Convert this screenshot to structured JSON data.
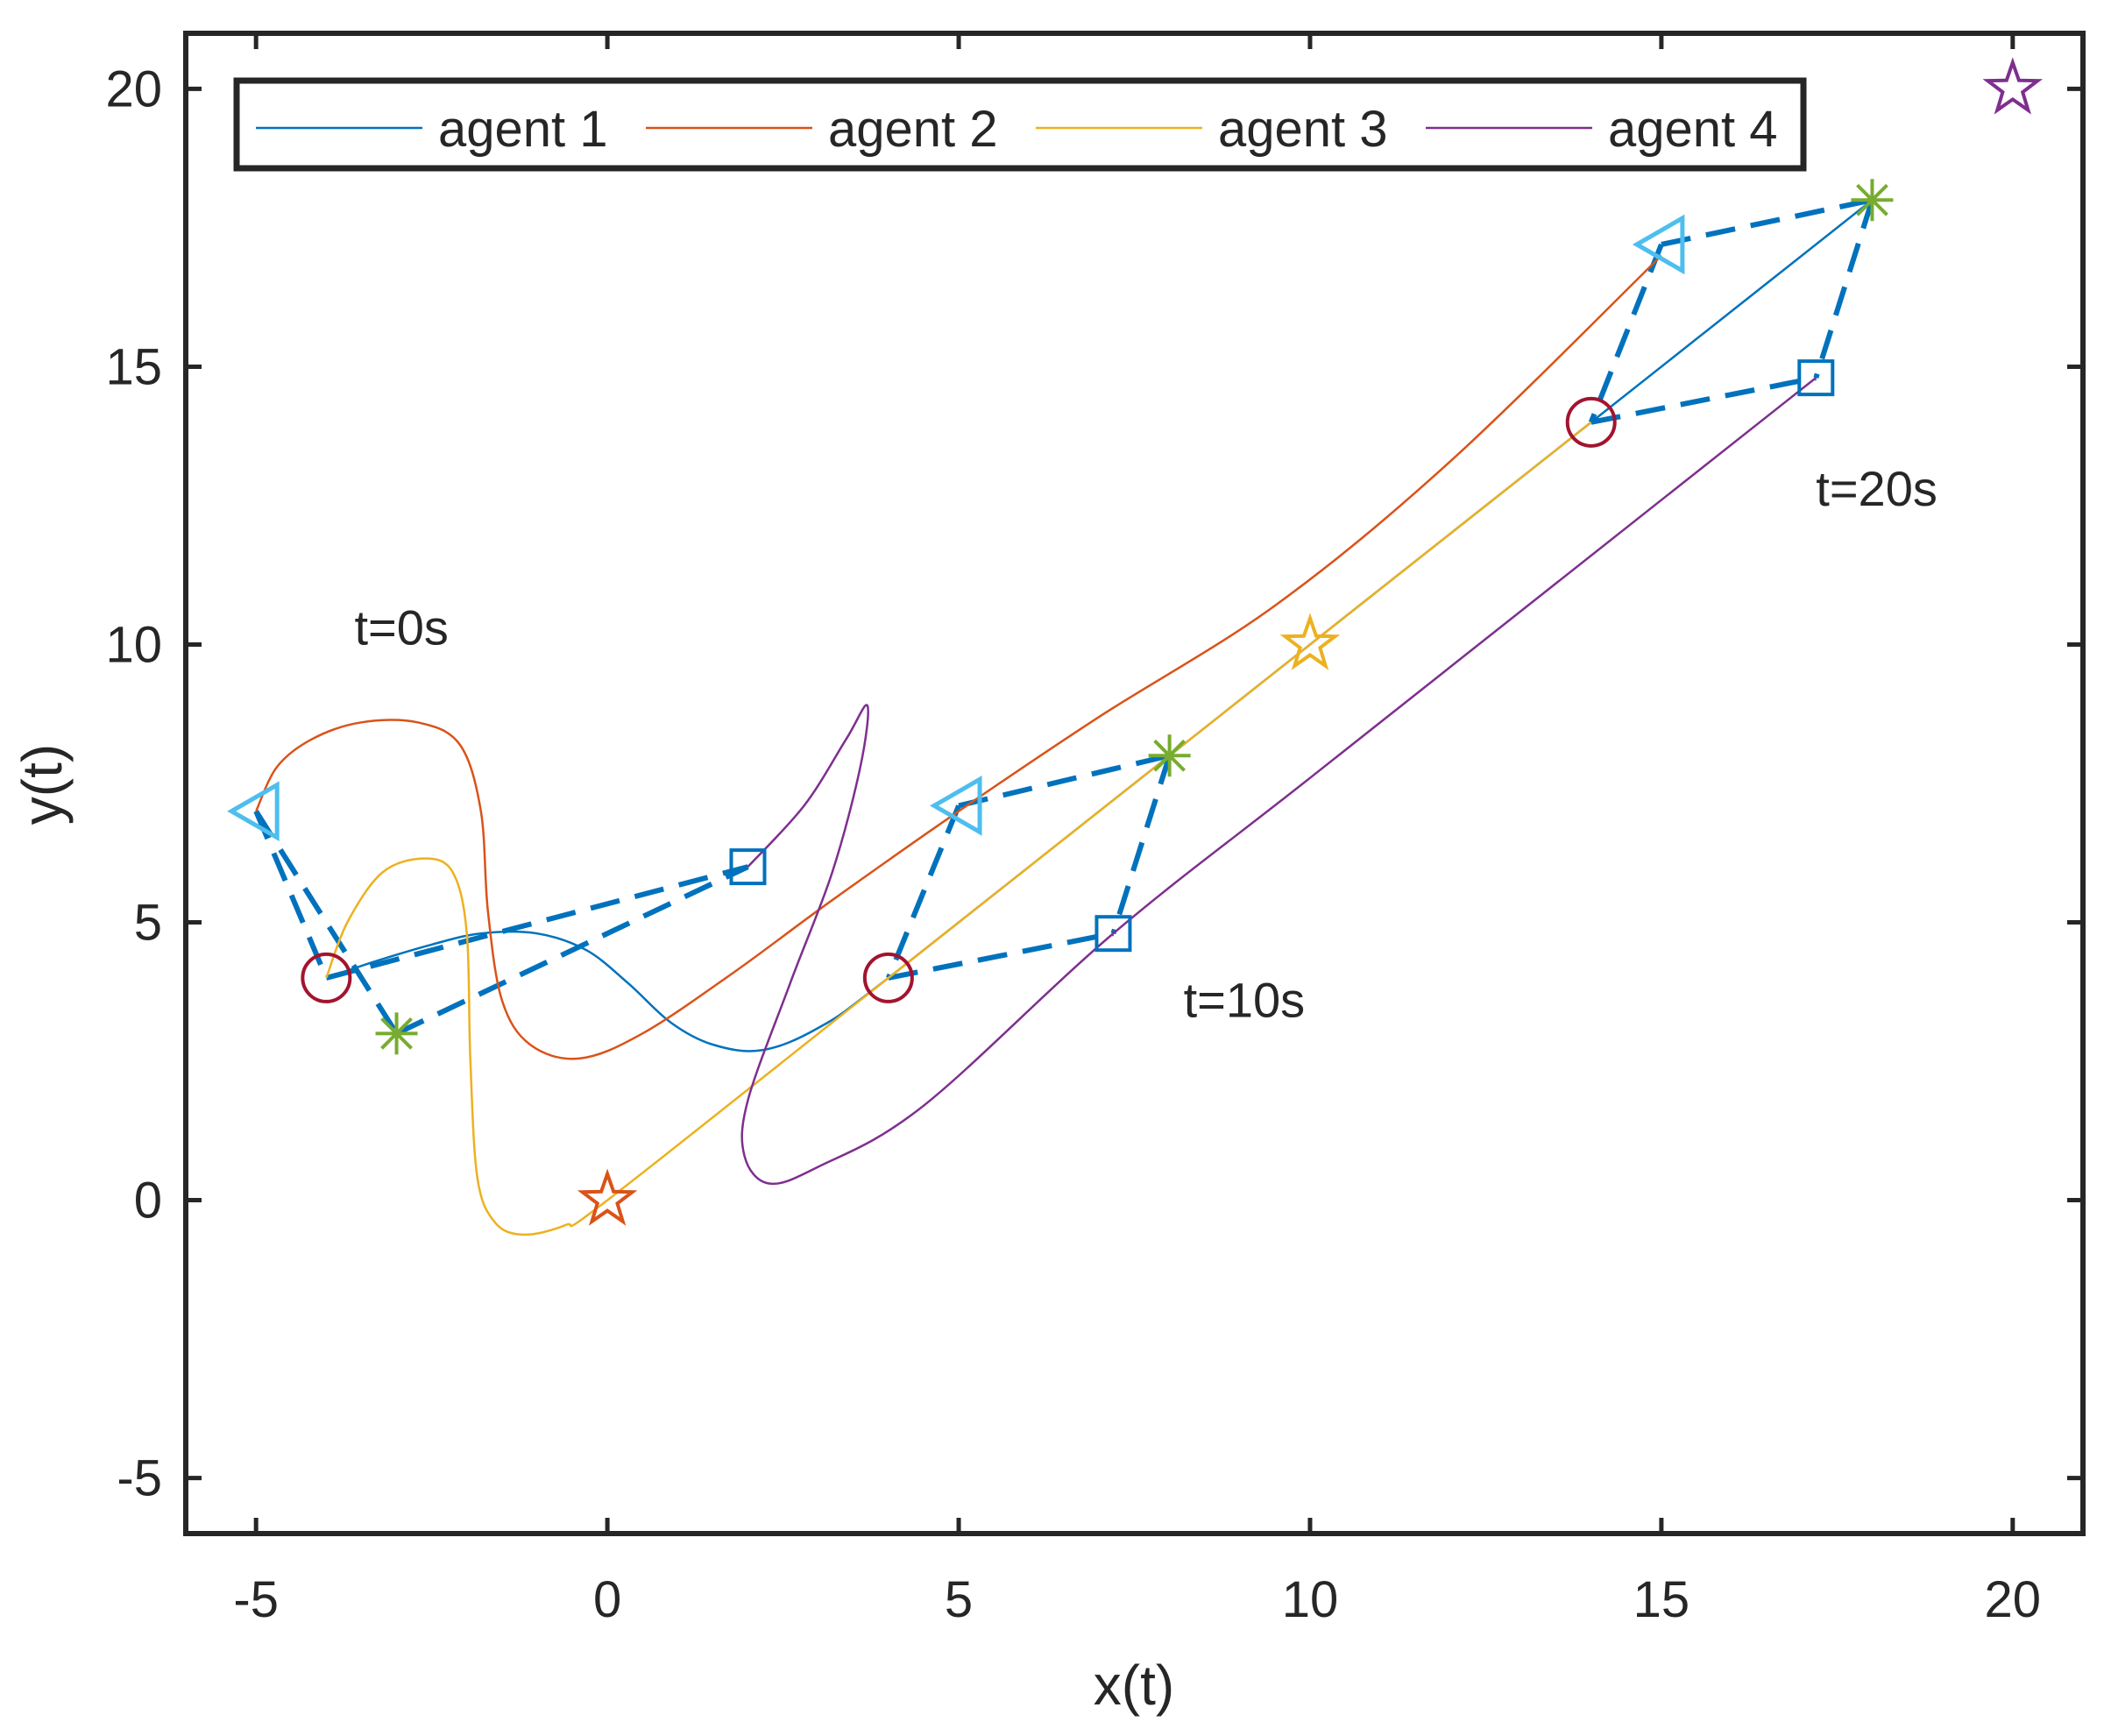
{
  "chart_data": {
    "type": "line",
    "title": "",
    "xlabel": "x(t)",
    "ylabel": "y(t)",
    "xlim": [
      -6,
      21
    ],
    "ylim": [
      -6,
      21
    ],
    "xticks": [
      -5,
      0,
      5,
      10,
      15,
      20
    ],
    "yticks": [
      -5,
      0,
      5,
      10,
      15,
      20
    ],
    "xtick_labels": [
      "-5",
      "0",
      "5",
      "10",
      "15",
      "20"
    ],
    "ytick_labels": [
      "-5",
      "0",
      "5",
      "10",
      "15",
      "20"
    ],
    "grid": false,
    "legend_position": "top-left",
    "series": [
      {
        "name": "agent 1",
        "color": "#0072BD",
        "points": [
          [
            -4,
            4
          ],
          [
            -3.3,
            4.3
          ],
          [
            -2.5,
            4.6
          ],
          [
            -1.8,
            4.8
          ],
          [
            -1.0,
            4.8
          ],
          [
            -0.3,
            4.5
          ],
          [
            0.3,
            3.9
          ],
          [
            0.9,
            3.2
          ],
          [
            1.5,
            2.8
          ],
          [
            2.2,
            2.7
          ],
          [
            3.0,
            3.1
          ],
          [
            4,
            4
          ],
          [
            8,
            8
          ],
          [
            14,
            14
          ],
          [
            16,
            16
          ],
          [
            18,
            18
          ]
        ]
      },
      {
        "name": "agent 2",
        "color": "#D95319",
        "points": [
          [
            -5,
            7
          ],
          [
            -4.7,
            7.8
          ],
          [
            -4.2,
            8.3
          ],
          [
            -3.5,
            8.6
          ],
          [
            -2.7,
            8.6
          ],
          [
            -2.1,
            8.2
          ],
          [
            -1.8,
            7.0
          ],
          [
            -1.7,
            5.2
          ],
          [
            -1.5,
            3.6
          ],
          [
            -1.1,
            2.8
          ],
          [
            -0.4,
            2.55
          ],
          [
            0.5,
            3.0
          ],
          [
            1.8,
            4.1
          ],
          [
            3.2,
            5.4
          ],
          [
            5,
            7
          ],
          [
            7,
            8.7
          ],
          [
            9.5,
            10.7
          ],
          [
            12,
            13.3
          ],
          [
            15,
            17
          ]
        ]
      },
      {
        "name": "agent 3",
        "color": "#EDB120",
        "points": [
          [
            -4,
            4
          ],
          [
            -3.7,
            5.0
          ],
          [
            -3.2,
            5.9
          ],
          [
            -2.6,
            6.15
          ],
          [
            -2.2,
            5.9
          ],
          [
            -2.0,
            4.8
          ],
          [
            -1.95,
            2.5
          ],
          [
            -1.85,
            0.4
          ],
          [
            -1.6,
            -0.4
          ],
          [
            -1.2,
            -0.62
          ],
          [
            -0.6,
            -0.45
          ],
          [
            0,
            0
          ],
          [
            4,
            4
          ],
          [
            8,
            8
          ],
          [
            10,
            10
          ],
          [
            14,
            14
          ]
        ]
      },
      {
        "name": "agent 4",
        "color": "#7E2F8E",
        "points": [
          [
            2,
            6
          ],
          [
            2.8,
            7.1
          ],
          [
            3.4,
            8.3
          ],
          [
            3.7,
            8.9
          ],
          [
            3.6,
            7.8
          ],
          [
            3.2,
            5.9
          ],
          [
            2.6,
            3.9
          ],
          [
            2.0,
            1.8
          ],
          [
            1.95,
            0.8
          ],
          [
            2.3,
            0.3
          ],
          [
            3.0,
            0.6
          ],
          [
            4.5,
            1.7
          ],
          [
            7.2,
            4.8
          ],
          [
            10,
            7.6
          ],
          [
            14,
            11.6
          ],
          [
            17.2,
            14.8
          ]
        ]
      }
    ],
    "markers": [
      {
        "shape": "circle",
        "x": -4,
        "y": 4,
        "color": "#A2142F"
      },
      {
        "shape": "circle",
        "x": 4,
        "y": 4,
        "color": "#A2142F"
      },
      {
        "shape": "circle",
        "x": 14,
        "y": 14,
        "color": "#A2142F"
      },
      {
        "shape": "asterisk",
        "x": -3,
        "y": 3,
        "color": "#77AC30"
      },
      {
        "shape": "asterisk",
        "x": 8,
        "y": 8,
        "color": "#77AC30"
      },
      {
        "shape": "asterisk",
        "x": 18,
        "y": 18,
        "color": "#77AC30"
      },
      {
        "shape": "square",
        "x": 2,
        "y": 6,
        "color": "#0072BD"
      },
      {
        "shape": "square",
        "x": 7.2,
        "y": 4.8,
        "color": "#0072BD"
      },
      {
        "shape": "square",
        "x": 17.2,
        "y": 14.8,
        "color": "#0072BD"
      },
      {
        "shape": "triangle-left",
        "x": -5,
        "y": 7,
        "color": "#4DBEEE"
      },
      {
        "shape": "triangle-left",
        "x": 5,
        "y": 7.1,
        "color": "#4DBEEE"
      },
      {
        "shape": "triangle-left",
        "x": 15,
        "y": 17.2,
        "color": "#4DBEEE"
      },
      {
        "shape": "star",
        "x": 0,
        "y": 0,
        "color": "#D95319"
      },
      {
        "shape": "star",
        "x": 10,
        "y": 10,
        "color": "#EDB120"
      },
      {
        "shape": "star",
        "x": 20,
        "y": 20,
        "color": "#7E2F8E"
      }
    ],
    "formation_color": "#0072BD",
    "formations": [
      {
        "edges": [
          [
            [
              -5,
              7
            ],
            [
              -4,
              4
            ]
          ],
          [
            [
              -5,
              7
            ],
            [
              -3,
              3
            ]
          ],
          [
            [
              -4,
              4
            ],
            [
              2,
              6
            ]
          ],
          [
            [
              -3,
              3
            ],
            [
              2,
              6
            ]
          ]
        ]
      },
      {
        "edges": [
          [
            [
              5,
              7.1
            ],
            [
              4,
              4
            ]
          ],
          [
            [
              5,
              7.1
            ],
            [
              8,
              8
            ]
          ],
          [
            [
              4,
              4
            ],
            [
              7.2,
              4.8
            ]
          ],
          [
            [
              8,
              8
            ],
            [
              7.2,
              4.8
            ]
          ]
        ]
      },
      {
        "edges": [
          [
            [
              15,
              17.2
            ],
            [
              14,
              14
            ]
          ],
          [
            [
              15,
              17.2
            ],
            [
              18,
              18
            ]
          ],
          [
            [
              14,
              14
            ],
            [
              17.2,
              14.8
            ]
          ],
          [
            [
              18,
              18
            ],
            [
              17.2,
              14.8
            ]
          ]
        ]
      }
    ],
    "annotations": [
      {
        "text": "t=0s",
        "x": -3.6,
        "y": 10.0
      },
      {
        "text": "t=10s",
        "x": 8.2,
        "y": 3.3
      },
      {
        "text": "t=20s",
        "x": 17.2,
        "y": 12.5
      }
    ]
  }
}
